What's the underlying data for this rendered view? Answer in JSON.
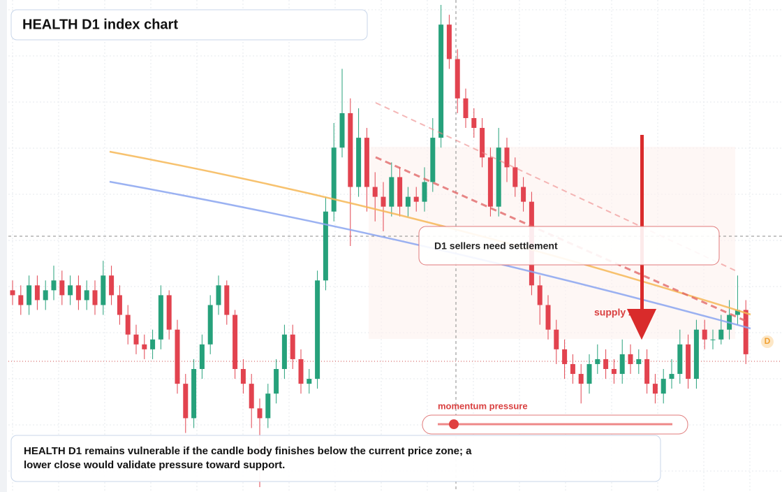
{
  "chart_data": {
    "type": "candlestick",
    "title": "HEALTH D1 index chart",
    "annotations": [
      "D1 sellers need settlement",
      "supply zone",
      "momentum pressure",
      "D"
    ],
    "note": "HEALTH D1 remains vulnerable if the candle body finishes below the current price zone; a lower close would validate pressure toward support.",
    "ylim": [
      0,
      100
    ],
    "up_color": "#26a17b",
    "down_color": "#e2434f",
    "open": [
      41,
      40,
      38,
      42,
      39,
      41,
      43,
      40,
      42,
      39,
      41,
      38,
      44,
      40,
      36,
      32,
      30,
      29,
      31,
      40,
      33,
      22,
      15,
      25,
      30,
      38,
      42,
      36,
      25,
      22,
      17,
      15,
      20,
      25,
      32,
      27,
      22,
      23,
      43,
      57,
      70,
      77,
      62,
      72,
      62,
      60,
      58,
      64,
      58,
      60,
      59,
      63,
      72,
      95,
      88,
      80,
      76,
      74,
      68,
      58,
      70,
      66,
      62,
      59,
      42,
      38,
      33,
      29,
      26,
      24,
      22,
      26,
      27,
      25,
      24,
      28,
      26,
      27,
      22,
      20,
      23,
      24,
      30,
      23,
      33,
      31,
      31,
      33,
      36,
      37
    ],
    "high": [
      43,
      42,
      44,
      44,
      43,
      46,
      45,
      44,
      44,
      43,
      43,
      47,
      46,
      42,
      38,
      34,
      32,
      33,
      42,
      41,
      35,
      24,
      27,
      32,
      40,
      44,
      43,
      37,
      27,
      24,
      19,
      22,
      27,
      34,
      34,
      29,
      25,
      45,
      60,
      75,
      86,
      80,
      78,
      74,
      65,
      63,
      67,
      66,
      62,
      62,
      66,
      76,
      99,
      97,
      90,
      82,
      78,
      76,
      70,
      74,
      72,
      68,
      64,
      61,
      44,
      40,
      35,
      31,
      28,
      26,
      28,
      30,
      29,
      27,
      31,
      30,
      29,
      29,
      24,
      25,
      27,
      33,
      32,
      35,
      35,
      33,
      36,
      39,
      44,
      39
    ],
    "low": [
      38,
      36,
      36,
      37,
      37,
      39,
      38,
      38,
      37,
      37,
      36,
      36,
      38,
      34,
      30,
      28,
      27,
      27,
      29,
      31,
      20,
      12,
      13,
      23,
      28,
      36,
      34,
      23,
      20,
      13,
      1,
      13,
      18,
      23,
      25,
      20,
      20,
      21,
      41,
      55,
      68,
      50,
      60,
      57,
      55,
      53,
      56,
      56,
      56,
      57,
      57,
      61,
      70,
      86,
      77,
      74,
      72,
      66,
      56,
      56,
      63,
      60,
      57,
      40,
      34,
      31,
      26,
      23,
      22,
      18,
      20,
      24,
      23,
      22,
      22,
      24,
      24,
      20,
      18,
      18,
      21,
      22,
      21,
      21,
      29,
      29,
      30,
      31,
      34,
      26
    ],
    "close": [
      40,
      38,
      42,
      39,
      41,
      43,
      40,
      42,
      39,
      41,
      38,
      44,
      40,
      36,
      32,
      30,
      29,
      31,
      40,
      33,
      22,
      15,
      25,
      30,
      38,
      42,
      36,
      25,
      22,
      17,
      15,
      20,
      25,
      32,
      27,
      22,
      23,
      43,
      57,
      70,
      77,
      62,
      72,
      62,
      60,
      58,
      64,
      58,
      60,
      59,
      63,
      72,
      95,
      88,
      80,
      76,
      74,
      68,
      58,
      70,
      66,
      62,
      59,
      42,
      38,
      33,
      29,
      26,
      24,
      22,
      26,
      27,
      25,
      24,
      28,
      26,
      27,
      22,
      20,
      23,
      24,
      30,
      23,
      33,
      31,
      31,
      33,
      36,
      37,
      28
    ]
  }
}
